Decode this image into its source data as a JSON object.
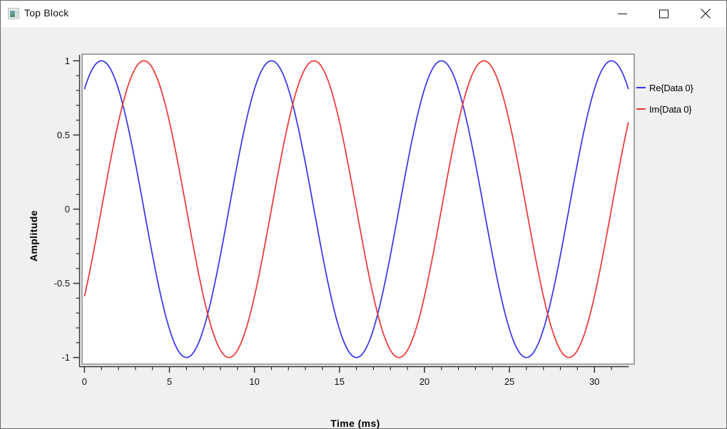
{
  "window": {
    "title": "Top Block",
    "controls": {
      "minimize": "minimize",
      "maximize": "maximize",
      "close": "close"
    }
  },
  "chart_data": {
    "type": "line",
    "title": "",
    "xlabel": "Time (ms)",
    "ylabel": "Amplitude",
    "xlim": [
      -0.1,
      32.3
    ],
    "ylim": [
      -1.04,
      1.04
    ],
    "x_major_ticks": [
      0,
      5,
      10,
      15,
      20,
      25,
      30
    ],
    "x_minor_tick_step": 1,
    "x_minor_tick_range": [
      0,
      31
    ],
    "y_major_ticks": [
      1,
      0.5,
      0,
      -0.5,
      -1
    ],
    "y_minor_tick_step": 0.1,
    "grid": false,
    "legend_position": "right",
    "axis_color": "#333333",
    "canvas_background": "#ffffff",
    "series": [
      {
        "name": "Re{Data 0}",
        "color": "#3434f0",
        "waveform": "cosine",
        "amplitude": 1,
        "period_ms": 10,
        "peak_at_ms": 1,
        "t_start_ms": 0,
        "t_end_ms": 32,
        "value_at_t0": 0.81,
        "value_at_t_end": 0.81
      },
      {
        "name": "Im{Data 0}",
        "color": "#f03434",
        "waveform": "cosine",
        "amplitude": 1,
        "period_ms": 10,
        "peak_at_ms": 3.5,
        "t_start_ms": 0,
        "t_end_ms": 32,
        "value_at_t0": -0.59,
        "value_at_t_end": 0.59
      }
    ]
  }
}
